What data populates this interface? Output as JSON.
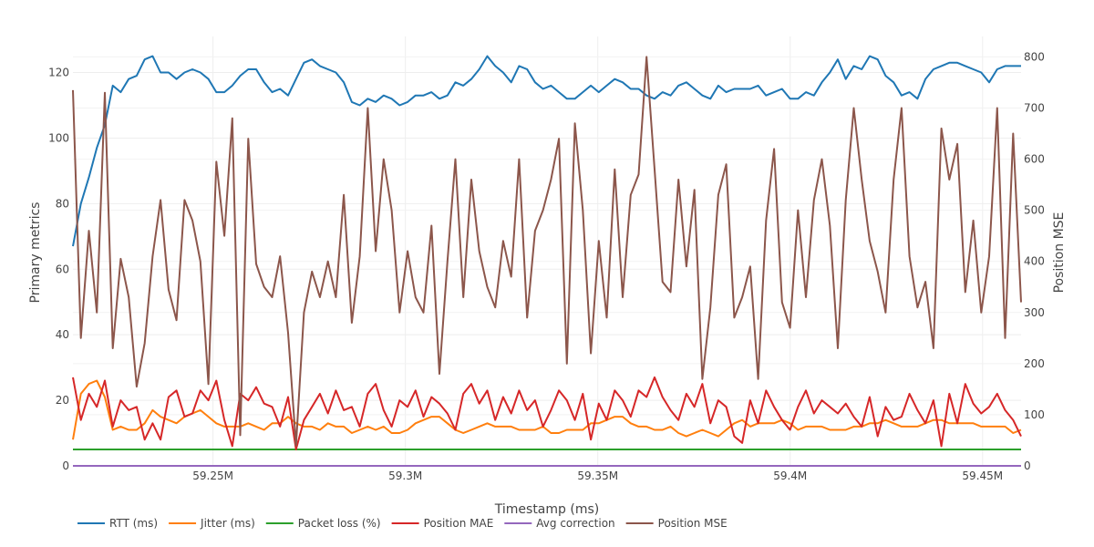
{
  "chart_data": {
    "type": "line",
    "title": "",
    "xlabel": "Timestamp (ms)",
    "ylabel": "Primary metrics",
    "y2label": "Position MSE",
    "xlim": [
      59213600,
      59460000
    ],
    "ylim": [
      0,
      131
    ],
    "y2lim": [
      0,
      840
    ],
    "grid": true,
    "legend_position": "bottom-left",
    "x_ticks": [
      {
        "value": 59250000,
        "label": "59.25M"
      },
      {
        "value": 59300000,
        "label": "59.3M"
      },
      {
        "value": 59350000,
        "label": "59.35M"
      },
      {
        "value": 59400000,
        "label": "59.4M"
      },
      {
        "value": 59450000,
        "label": "59.45M"
      }
    ],
    "y_ticks": [
      {
        "value": 0,
        "label": "0"
      },
      {
        "value": 20,
        "label": "20"
      },
      {
        "value": 40,
        "label": "40"
      },
      {
        "value": 60,
        "label": "60"
      },
      {
        "value": 80,
        "label": "80"
      },
      {
        "value": 100,
        "label": "100"
      },
      {
        "value": 120,
        "label": "120"
      }
    ],
    "y2_ticks": [
      {
        "value": 0,
        "label": "0"
      },
      {
        "value": 100,
        "label": "100"
      },
      {
        "value": 200,
        "label": "200"
      },
      {
        "value": 300,
        "label": "300"
      },
      {
        "value": 400,
        "label": "400"
      },
      {
        "value": 500,
        "label": "500"
      },
      {
        "value": 600,
        "label": "600"
      },
      {
        "value": 700,
        "label": "700"
      },
      {
        "value": 800,
        "label": "800"
      }
    ],
    "x_start": 59213600,
    "x_step": 2070,
    "series": [
      {
        "name": "RTT (ms)",
        "color": "#1f77b4",
        "axis": "y",
        "values": [
          67,
          80,
          88,
          97,
          104,
          116,
          114,
          118,
          119,
          124,
          125,
          120,
          120,
          118,
          120,
          121,
          120,
          118,
          114,
          114,
          116,
          119,
          121,
          121,
          117,
          114,
          115,
          113,
          118,
          123,
          124,
          122,
          121,
          120,
          117,
          111,
          110,
          112,
          111,
          113,
          112,
          110,
          111,
          113,
          113,
          114,
          112,
          113,
          117,
          116,
          118,
          121,
          125,
          122,
          120,
          117,
          122,
          121,
          117,
          115,
          116,
          114,
          112,
          112,
          114,
          116,
          114,
          116,
          118,
          117,
          115,
          115,
          113,
          112,
          114,
          113,
          116,
          117,
          115,
          113,
          112,
          116,
          114,
          115,
          115,
          115,
          116,
          113,
          114,
          115,
          112,
          112,
          114,
          113,
          117,
          120,
          124,
          118,
          122,
          121,
          125,
          124,
          119,
          117,
          113,
          114,
          112,
          118,
          121,
          122,
          123,
          123,
          122,
          121,
          120,
          117,
          121,
          122,
          122,
          122
        ]
      },
      {
        "name": "Jitter (ms)",
        "color": "#ff7f0e",
        "axis": "y",
        "values": [
          8,
          22,
          25,
          26,
          21,
          11,
          12,
          11,
          11,
          13,
          17,
          15,
          14,
          13,
          15,
          16,
          17,
          15,
          13,
          12,
          12,
          12,
          13,
          12,
          11,
          13,
          13,
          15,
          13,
          12,
          12,
          11,
          13,
          12,
          12,
          10,
          11,
          12,
          11,
          12,
          10,
          10,
          11,
          13,
          14,
          15,
          15,
          13,
          11,
          10,
          11,
          12,
          13,
          12,
          12,
          12,
          11,
          11,
          11,
          12,
          10,
          10,
          11,
          11,
          11,
          13,
          13,
          14,
          15,
          15,
          13,
          12,
          12,
          11,
          11,
          12,
          10,
          9,
          10,
          11,
          10,
          9,
          11,
          13,
          14,
          12,
          13,
          13,
          13,
          14,
          13,
          11,
          12,
          12,
          12,
          11,
          11,
          11,
          12,
          12,
          13,
          13,
          14,
          13,
          12,
          12,
          12,
          13,
          14,
          14,
          13,
          13,
          13,
          13,
          12,
          12,
          12,
          12,
          10,
          11
        ]
      },
      {
        "name": "Packet loss (%)",
        "color": "#2ca02c",
        "axis": "y",
        "values": [
          5,
          5,
          5,
          5,
          5,
          5,
          5,
          5,
          5,
          5,
          5,
          5,
          5,
          5,
          5,
          5,
          5,
          5,
          5,
          5,
          5,
          5,
          5,
          5,
          5,
          5,
          5,
          5,
          5,
          5,
          5,
          5,
          5,
          5,
          5,
          5,
          5,
          5,
          5,
          5,
          5,
          5,
          5,
          5,
          5,
          5,
          5,
          5,
          5,
          5,
          5,
          5,
          5,
          5,
          5,
          5,
          5,
          5,
          5,
          5,
          5,
          5,
          5,
          5,
          5,
          5,
          5,
          5,
          5,
          5,
          5,
          5,
          5,
          5,
          5,
          5,
          5,
          5,
          5,
          5,
          5,
          5,
          5,
          5,
          5,
          5,
          5,
          5,
          5,
          5,
          5,
          5,
          5,
          5,
          5,
          5,
          5,
          5,
          5,
          5,
          5,
          5,
          5,
          5,
          5,
          5,
          5,
          5,
          5,
          5,
          5,
          5,
          5,
          5,
          5,
          5,
          5,
          5,
          5,
          5
        ]
      },
      {
        "name": "Position MAE",
        "color": "#d62728",
        "axis": "y",
        "values": [
          27,
          14,
          22,
          18,
          26,
          12,
          20,
          17,
          18,
          8,
          13,
          8,
          21,
          23,
          15,
          16,
          23,
          20,
          26,
          14,
          6,
          22,
          20,
          24,
          19,
          18,
          12,
          21,
          5,
          14,
          18,
          22,
          16,
          23,
          17,
          18,
          12,
          22,
          25,
          17,
          12,
          20,
          18,
          23,
          15,
          21,
          19,
          16,
          11,
          22,
          25,
          19,
          23,
          14,
          21,
          16,
          23,
          17,
          20,
          12,
          17,
          23,
          20,
          14,
          22,
          8,
          19,
          14,
          23,
          20,
          15,
          23,
          21,
          27,
          21,
          17,
          14,
          22,
          18,
          25,
          13,
          20,
          18,
          9,
          7,
          20,
          13,
          23,
          18,
          14,
          11,
          18,
          23,
          16,
          20,
          18,
          16,
          19,
          15,
          12,
          21,
          9,
          18,
          14,
          15,
          22,
          17,
          13,
          20,
          6,
          22,
          13,
          25,
          19,
          16,
          18,
          22,
          17,
          14,
          9
        ]
      },
      {
        "name": "Avg correction",
        "color": "#9467bd",
        "axis": "y",
        "values": [
          0,
          0,
          0,
          0,
          0,
          0,
          0,
          0,
          0,
          0,
          0,
          0,
          0,
          0,
          0,
          0,
          0,
          0,
          0,
          0,
          0,
          0,
          0,
          0,
          0,
          0,
          0,
          0,
          0,
          0,
          0,
          0,
          0,
          0,
          0,
          0,
          0,
          0,
          0,
          0,
          0,
          0,
          0,
          0,
          0,
          0,
          0,
          0,
          0,
          0,
          0,
          0,
          0,
          0,
          0,
          0,
          0,
          0,
          0,
          0,
          0,
          0,
          0,
          0,
          0,
          0,
          0,
          0,
          0,
          0,
          0,
          0,
          0,
          0,
          0,
          0,
          0,
          0,
          0,
          0,
          0,
          0,
          0,
          0,
          0,
          0,
          0,
          0,
          0,
          0,
          0,
          0,
          0,
          0,
          0,
          0,
          0,
          0,
          0,
          0,
          0,
          0,
          0,
          0,
          0,
          0,
          0,
          0,
          0,
          0,
          0,
          0,
          0,
          0,
          0,
          0,
          0,
          0,
          0,
          0
        ]
      },
      {
        "name": "Position MSE",
        "color": "#8c564b",
        "axis": "y2",
        "values": [
          735,
          250,
          460,
          300,
          730,
          230,
          405,
          330,
          155,
          240,
          410,
          520,
          345,
          285,
          520,
          480,
          400,
          160,
          595,
          450,
          680,
          60,
          640,
          395,
          350,
          330,
          410,
          260,
          40,
          300,
          380,
          330,
          400,
          330,
          530,
          280,
          410,
          700,
          420,
          600,
          500,
          300,
          420,
          330,
          300,
          470,
          180,
          400,
          600,
          330,
          560,
          420,
          350,
          310,
          440,
          370,
          600,
          290,
          460,
          500,
          560,
          640,
          200,
          670,
          500,
          220,
          440,
          290,
          580,
          330,
          530,
          570,
          800,
          580,
          360,
          340,
          560,
          390,
          540,
          170,
          310,
          530,
          590,
          290,
          330,
          390,
          170,
          480,
          620,
          320,
          270,
          500,
          330,
          520,
          600,
          470,
          230,
          520,
          700,
          560,
          440,
          380,
          300,
          560,
          700,
          410,
          310,
          360,
          230,
          660,
          560,
          630,
          340,
          480,
          300,
          410,
          700,
          250,
          650,
          320
        ]
      }
    ]
  }
}
